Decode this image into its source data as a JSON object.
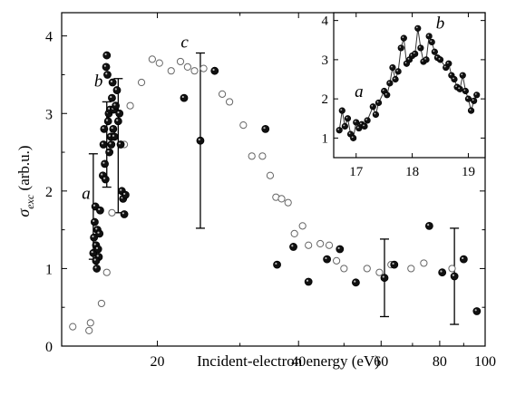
{
  "chart_data": [
    {
      "type": "scatter",
      "xlabel": "Incident-electron energy (eV)",
      "ylabel_main": "σ",
      "ylabel_sub": "exc",
      "ylabel_unit": " (arb.u.)",
      "xscale": "log",
      "xlim": [
        12.5,
        100
      ],
      "ylim": [
        0,
        4.3
      ],
      "x_ticks": [
        20,
        40,
        60,
        80,
        100
      ],
      "y_ticks": [
        0,
        1,
        2,
        3,
        4
      ],
      "annotations": [
        {
          "text": "a",
          "x": 14.4,
          "y": 1.9
        },
        {
          "text": "b",
          "x": 15.3,
          "y": 3.35
        },
        {
          "text": "c",
          "x": 23.3,
          "y": 3.85
        }
      ],
      "series": [
        {
          "style": "filled-circle",
          "points": [
            [
              14.6,
              1.2
            ],
            [
              14.65,
              1.4
            ],
            [
              14.7,
              1.6
            ],
            [
              14.75,
              1.8
            ],
            [
              14.8,
              1.3
            ],
            [
              14.85,
              1.0
            ],
            [
              14.9,
              1.5
            ],
            [
              15.0,
              1.15
            ],
            [
              14.95,
              1.25
            ],
            [
              15.05,
              1.45
            ],
            [
              15.1,
              1.75
            ],
            [
              14.8,
              1.1
            ],
            [
              15.3,
              2.2
            ],
            [
              15.35,
              2.6
            ],
            [
              15.4,
              2.8
            ],
            [
              15.45,
              2.35
            ],
            [
              15.5,
              2.15
            ],
            [
              15.55,
              3.6
            ],
            [
              15.6,
              3.75
            ],
            [
              15.65,
              3.5
            ],
            [
              15.7,
              2.9
            ],
            [
              15.75,
              3.0
            ],
            [
              15.8,
              2.5
            ],
            [
              15.85,
              3.05
            ],
            [
              15.9,
              2.7
            ],
            [
              15.95,
              2.6
            ],
            [
              16.0,
              3.2
            ],
            [
              16.05,
              3.4
            ],
            [
              16.1,
              2.8
            ],
            [
              16.15,
              3.05
            ],
            [
              16.2,
              2.7
            ],
            [
              16.3,
              3.1
            ],
            [
              16.4,
              3.3
            ],
            [
              16.5,
              2.9
            ],
            [
              16.6,
              3.0
            ],
            [
              16.7,
              2.6
            ],
            [
              16.8,
              2.0
            ],
            [
              16.9,
              1.9
            ],
            [
              17.0,
              1.7
            ],
            [
              17.1,
              1.95
            ],
            [
              22.8,
              3.2
            ],
            [
              24.7,
              2.65
            ],
            [
              26.5,
              3.55
            ],
            [
              34.0,
              2.8
            ],
            [
              36.0,
              1.05
            ],
            [
              39.0,
              1.28
            ],
            [
              42.0,
              0.83
            ],
            [
              46.0,
              1.12
            ],
            [
              49.0,
              1.25
            ],
            [
              53.0,
              0.82
            ],
            [
              61.0,
              0.88
            ],
            [
              64.0,
              1.05
            ],
            [
              76.0,
              1.55
            ],
            [
              81.0,
              0.95
            ],
            [
              86.0,
              0.9
            ],
            [
              90.0,
              1.12
            ],
            [
              96.0,
              0.45
            ]
          ]
        },
        {
          "style": "open-circle",
          "points": [
            [
              13.2,
              0.25
            ],
            [
              14.3,
              0.2
            ],
            [
              14.4,
              0.3
            ],
            [
              15.2,
              0.55
            ],
            [
              15.6,
              0.95
            ],
            [
              16.0,
              1.72
            ],
            [
              16.5,
              2.9
            ],
            [
              17.0,
              2.6
            ],
            [
              17.5,
              3.1
            ],
            [
              18.5,
              3.4
            ],
            [
              19.5,
              3.7
            ],
            [
              20.2,
              3.65
            ],
            [
              21.4,
              3.55
            ],
            [
              22.4,
              3.67
            ],
            [
              23.2,
              3.6
            ],
            [
              24.0,
              3.55
            ],
            [
              25.1,
              3.58
            ],
            [
              27.5,
              3.25
            ],
            [
              28.5,
              3.15
            ],
            [
              30.5,
              2.85
            ],
            [
              31.8,
              2.45
            ],
            [
              33.5,
              2.45
            ],
            [
              34.8,
              2.2
            ],
            [
              35.8,
              1.92
            ],
            [
              36.8,
              1.9
            ],
            [
              38.0,
              1.85
            ],
            [
              39.2,
              1.45
            ],
            [
              40.8,
              1.55
            ],
            [
              42.0,
              1.3
            ],
            [
              44.5,
              1.32
            ],
            [
              46.5,
              1.3
            ],
            [
              48.2,
              1.1
            ],
            [
              50.0,
              1.0
            ],
            [
              56.0,
              1.0
            ],
            [
              59.5,
              0.95
            ],
            [
              63.0,
              1.05
            ],
            [
              69.5,
              1.0
            ],
            [
              74.0,
              1.07
            ],
            [
              85.0,
              1.0
            ]
          ]
        }
      ],
      "error_bars": [
        {
          "x": 14.6,
          "y": 1.8,
          "lo": 1.12,
          "hi": 2.48
        },
        {
          "x": 15.6,
          "y": 2.6,
          "lo": 2.05,
          "hi": 3.15
        },
        {
          "x": 16.5,
          "y": 2.5,
          "lo": 1.72,
          "hi": 3.45
        },
        {
          "x": 24.7,
          "y": 2.65,
          "lo": 1.52,
          "hi": 3.78
        },
        {
          "x": 61.0,
          "y": 0.88,
          "lo": 0.38,
          "hi": 1.38
        },
        {
          "x": 86.0,
          "y": 0.9,
          "lo": 0.28,
          "hi": 1.52
        }
      ]
    },
    {
      "type": "line",
      "xlim": [
        16.6,
        19.3
      ],
      "ylim": [
        0.5,
        4.2
      ],
      "x_ticks": [
        17,
        18,
        19
      ],
      "y_ticks": [
        1,
        2,
        3,
        4
      ],
      "annotations": [
        {
          "text": "a",
          "x": 17.05,
          "y": 2.05
        },
        {
          "text": "b",
          "x": 18.5,
          "y": 3.8
        }
      ],
      "x": [
        16.7,
        16.75,
        16.8,
        16.85,
        16.9,
        16.95,
        17.0,
        17.05,
        17.1,
        17.15,
        17.2,
        17.3,
        17.35,
        17.4,
        17.5,
        17.55,
        17.6,
        17.65,
        17.7,
        17.75,
        17.8,
        17.85,
        17.9,
        17.95,
        18.0,
        18.05,
        18.1,
        18.15,
        18.2,
        18.25,
        18.3,
        18.35,
        18.4,
        18.45,
        18.5,
        18.6,
        18.65,
        18.7,
        18.75,
        18.8,
        18.85,
        18.9,
        18.95,
        19.0,
        19.05,
        19.1,
        19.15
      ],
      "y": [
        1.2,
        1.7,
        1.3,
        1.5,
        1.1,
        1.0,
        1.4,
        1.25,
        1.35,
        1.3,
        1.45,
        1.8,
        1.6,
        1.9,
        2.2,
        2.1,
        2.4,
        2.8,
        2.5,
        2.7,
        3.3,
        3.55,
        2.9,
        3.0,
        3.1,
        3.15,
        3.8,
        3.3,
        2.95,
        3.0,
        3.6,
        3.45,
        3.2,
        3.05,
        3.0,
        2.8,
        2.9,
        2.6,
        2.5,
        2.3,
        2.25,
        2.6,
        2.2,
        2.0,
        1.7,
        1.95,
        2.1
      ]
    }
  ]
}
